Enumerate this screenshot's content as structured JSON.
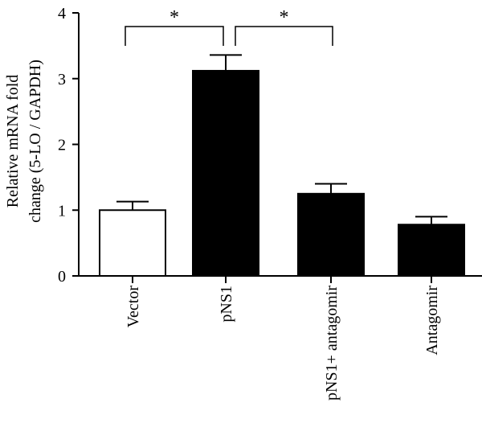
{
  "chart_data": {
    "type": "bar",
    "title": "",
    "xlabel": "",
    "ylabel": [
      "Relative mRNA fold",
      "change (5-LO / GAPDH)"
    ],
    "ylim": [
      0,
      4
    ],
    "yticks": [
      "0",
      "1",
      "2",
      "3",
      "4"
    ],
    "categories": [
      "Vector",
      "pNS1",
      "pNS1+ antagomir",
      "Antagomir"
    ],
    "values": [
      1.0,
      3.12,
      1.25,
      0.78
    ],
    "errors": [
      0.13,
      0.24,
      0.15,
      0.12
    ],
    "bar_fills": [
      "#ffffff",
      "#000000",
      "#000000",
      "#000000"
    ],
    "significance": [
      {
        "between": [
          "Vector",
          "pNS1"
        ],
        "mark": "*"
      },
      {
        "between": [
          "pNS1",
          "pNS1+ antagomir"
        ],
        "mark": "*"
      }
    ],
    "grid": false,
    "legend": "none"
  }
}
